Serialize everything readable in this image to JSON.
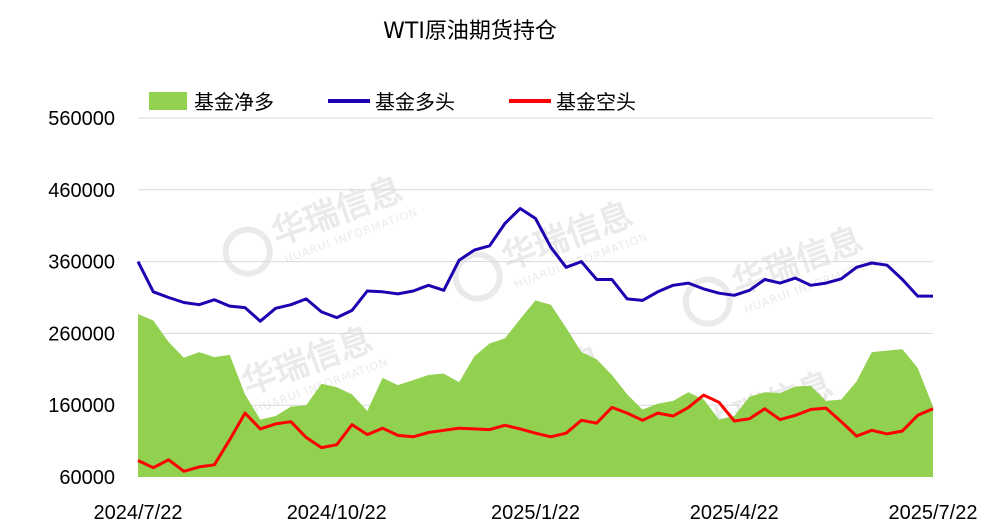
{
  "chart_data": {
    "type": "line",
    "title": "WTI原油期货持仓",
    "xlabel": "",
    "ylabel": "",
    "ylim": [
      60000,
      560000
    ],
    "yticks": [
      60000,
      160000,
      260000,
      360000,
      460000,
      560000
    ],
    "ytick_labels": [
      "60000",
      "160000",
      "260000",
      "360000",
      "460000",
      "560000"
    ],
    "xtick_labels": [
      "2024/7/22",
      "2024/10/22",
      "2025/1/22",
      "2025/4/22",
      "2025/7/22"
    ],
    "xtick_index": [
      0,
      13,
      26,
      39,
      52
    ],
    "legend_position": "top",
    "grid": true,
    "watermark": {
      "cn": "华瑞信息",
      "en": "HUARUI INFORMATION"
    },
    "series": [
      {
        "name": "基金净多",
        "style": "area",
        "color": "#92d050",
        "values": [
          287000,
          278000,
          248000,
          226000,
          234000,
          227000,
          230000,
          175000,
          140000,
          145000,
          158000,
          160000,
          190000,
          185000,
          175000,
          152000,
          198000,
          188000,
          195000,
          202000,
          204000,
          192000,
          228000,
          246000,
          253000,
          280000,
          306000,
          300000,
          268000,
          234000,
          224000,
          202000,
          175000,
          154000,
          162000,
          166000,
          178000,
          168000,
          140000,
          145000,
          172000,
          178000,
          177000,
          186000,
          187000,
          166000,
          168000,
          193000,
          234000,
          236000,
          238000,
          212000,
          158000
        ]
      },
      {
        "name": "基金多头",
        "style": "line",
        "color": "#2000b0",
        "values": [
          360000,
          318000,
          310000,
          303000,
          300000,
          307000,
          298000,
          296000,
          277000,
          295000,
          300000,
          308000,
          290000,
          282000,
          292000,
          319000,
          318000,
          315000,
          319000,
          327000,
          320000,
          362000,
          376000,
          382000,
          413000,
          434000,
          420000,
          380000,
          352000,
          360000,
          335000,
          335000,
          308000,
          306000,
          318000,
          327000,
          330000,
          322000,
          316000,
          313000,
          320000,
          335000,
          330000,
          337000,
          327000,
          330000,
          336000,
          352000,
          358000,
          355000,
          335000,
          312000,
          312000
        ]
      },
      {
        "name": "基金空头",
        "style": "line",
        "color": "#ff0000",
        "values": [
          83000,
          73000,
          84000,
          68000,
          74000,
          77000,
          112000,
          149000,
          127000,
          134000,
          137000,
          115000,
          101000,
          105000,
          133000,
          119000,
          128000,
          118000,
          116000,
          122000,
          125000,
          128000,
          127000,
          126000,
          132000,
          127000,
          121000,
          116000,
          121000,
          139000,
          135000,
          157000,
          149000,
          139000,
          149000,
          145000,
          157000,
          174000,
          164000,
          138000,
          141000,
          155000,
          140000,
          146000,
          154000,
          156000,
          137000,
          117000,
          125000,
          120000,
          124000,
          146000,
          155000
        ]
      }
    ]
  }
}
